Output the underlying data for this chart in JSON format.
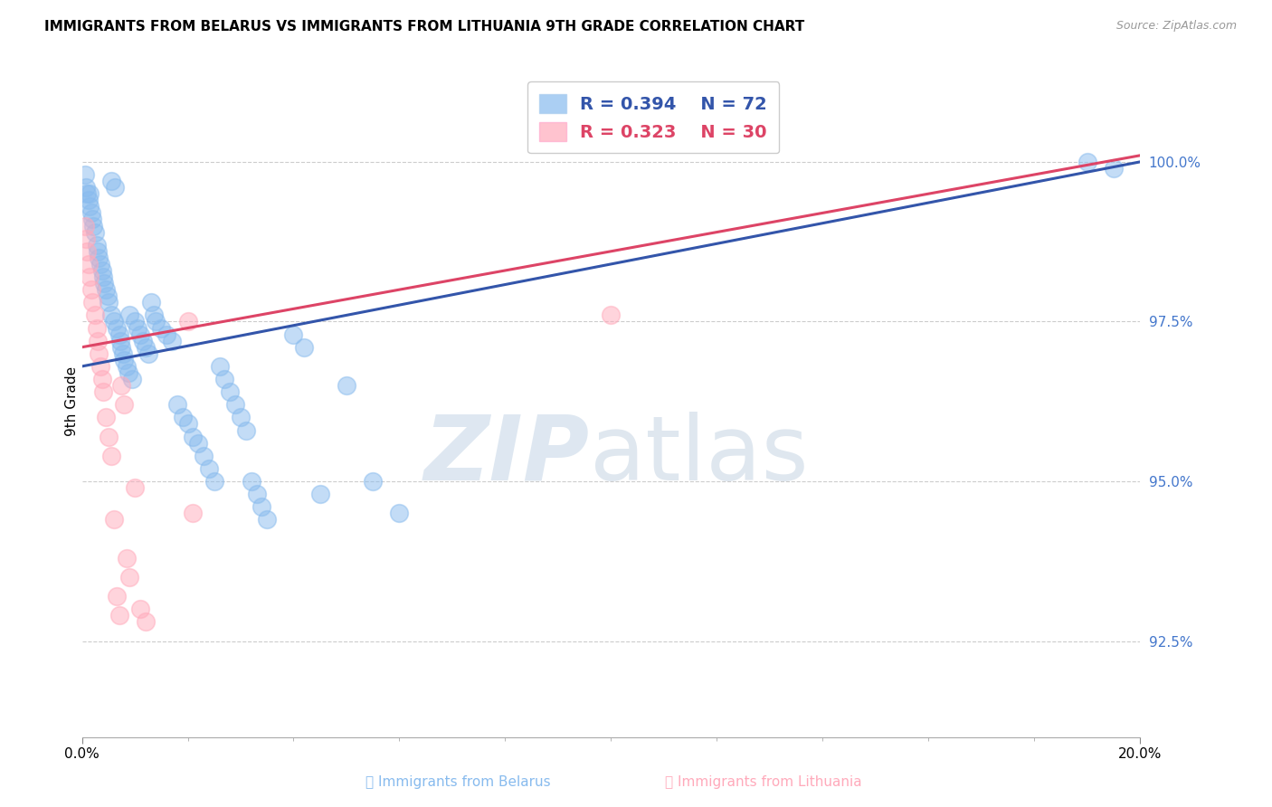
{
  "title": "IMMIGRANTS FROM BELARUS VS IMMIGRANTS FROM LITHUANIA 9TH GRADE CORRELATION CHART",
  "source": "Source: ZipAtlas.com",
  "ylabel": "9th Grade",
  "y_ticks": [
    92.5,
    95.0,
    97.5,
    100.0
  ],
  "y_tick_labels": [
    "92.5%",
    "95.0%",
    "97.5%",
    "100.0%"
  ],
  "xlim": [
    0.0,
    20.0
  ],
  "ylim": [
    91.0,
    101.5
  ],
  "watermark_zip": "ZIP",
  "watermark_atlas": "atlas",
  "legend_R1": "R = 0.394",
  "legend_N1": "N = 72",
  "legend_R2": "R = 0.323",
  "legend_N2": "N = 30",
  "color_blue": "#88BBEE",
  "color_pink": "#FFAABB",
  "color_blue_line": "#3355AA",
  "color_pink_line": "#DD4466",
  "color_ytick": "#4477CC",
  "blue_line_x": [
    0.0,
    20.0
  ],
  "blue_line_y": [
    96.8,
    100.0
  ],
  "pink_line_x": [
    0.0,
    20.0
  ],
  "pink_line_y": [
    97.1,
    100.1
  ],
  "belarus_x": [
    0.05,
    0.08,
    0.1,
    0.12,
    0.15,
    0.15,
    0.18,
    0.2,
    0.22,
    0.25,
    0.28,
    0.3,
    0.32,
    0.35,
    0.38,
    0.4,
    0.42,
    0.45,
    0.48,
    0.5,
    0.55,
    0.55,
    0.6,
    0.62,
    0.65,
    0.7,
    0.72,
    0.75,
    0.78,
    0.8,
    0.85,
    0.88,
    0.9,
    0.95,
    1.0,
    1.05,
    1.1,
    1.15,
    1.2,
    1.25,
    1.3,
    1.35,
    1.4,
    1.5,
    1.6,
    1.7,
    1.8,
    1.9,
    2.0,
    2.1,
    2.2,
    2.3,
    2.4,
    2.5,
    2.6,
    2.7,
    2.8,
    2.9,
    3.0,
    3.1,
    3.2,
    3.3,
    3.4,
    3.5,
    4.0,
    4.2,
    4.5,
    5.0,
    5.5,
    6.0,
    19.0,
    19.5
  ],
  "belarus_y": [
    99.8,
    99.6,
    99.5,
    99.4,
    99.5,
    99.3,
    99.2,
    99.1,
    99.0,
    98.9,
    98.7,
    98.6,
    98.5,
    98.4,
    98.3,
    98.2,
    98.1,
    98.0,
    97.9,
    97.8,
    99.7,
    97.6,
    97.5,
    99.6,
    97.4,
    97.3,
    97.2,
    97.1,
    97.0,
    96.9,
    96.8,
    96.7,
    97.6,
    96.6,
    97.5,
    97.4,
    97.3,
    97.2,
    97.1,
    97.0,
    97.8,
    97.6,
    97.5,
    97.4,
    97.3,
    97.2,
    96.2,
    96.0,
    95.9,
    95.7,
    95.6,
    95.4,
    95.2,
    95.0,
    96.8,
    96.6,
    96.4,
    96.2,
    96.0,
    95.8,
    95.0,
    94.8,
    94.6,
    94.4,
    97.3,
    97.1,
    94.8,
    96.5,
    95.0,
    94.5,
    100.0,
    99.9
  ],
  "lithuania_x": [
    0.05,
    0.08,
    0.1,
    0.12,
    0.15,
    0.18,
    0.2,
    0.25,
    0.28,
    0.3,
    0.32,
    0.35,
    0.38,
    0.4,
    0.45,
    0.5,
    0.55,
    0.6,
    0.65,
    0.7,
    0.75,
    0.8,
    0.85,
    0.9,
    1.0,
    1.1,
    1.2,
    2.0,
    2.1,
    10.0
  ],
  "lithuania_y": [
    99.0,
    98.8,
    98.6,
    98.4,
    98.2,
    98.0,
    97.8,
    97.6,
    97.4,
    97.2,
    97.0,
    96.8,
    96.6,
    96.4,
    96.0,
    95.7,
    95.4,
    94.4,
    93.2,
    92.9,
    96.5,
    96.2,
    93.8,
    93.5,
    94.9,
    93.0,
    92.8,
    97.5,
    94.5,
    97.6
  ]
}
